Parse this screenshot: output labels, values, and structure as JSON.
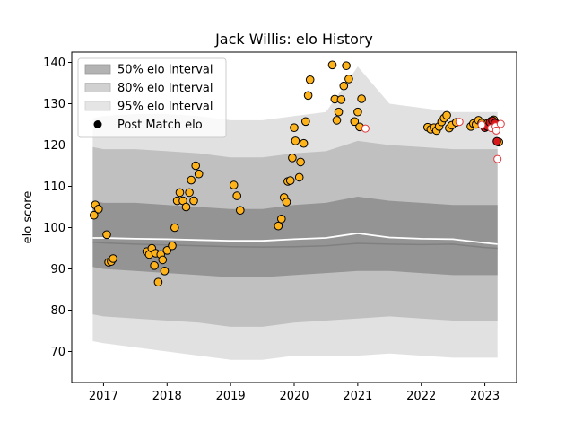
{
  "chart_data": {
    "type": "scatter",
    "title": "Jack Willis: elo History",
    "xlabel": "",
    "ylabel": "elo score",
    "xlim": [
      2016.5,
      2023.5
    ],
    "ylim": [
      62.5,
      142.5
    ],
    "x_ticks": [
      2017,
      2018,
      2019,
      2020,
      2021,
      2022,
      2023
    ],
    "y_ticks": [
      70,
      80,
      90,
      100,
      110,
      120,
      130,
      140
    ],
    "grid": false,
    "legend_position": "top-left",
    "legend": [
      {
        "label": "50% elo Interval",
        "kind": "band",
        "color": "#999999",
        "opacity": 0.75
      },
      {
        "label": "80% elo Interval",
        "kind": "band",
        "color": "#b3b3b3",
        "opacity": 0.6
      },
      {
        "label": "95% elo Interval",
        "kind": "band",
        "color": "#d0d0d0",
        "opacity": 0.55
      },
      {
        "label": "Post Match elo",
        "kind": "marker",
        "color": "#000000"
      }
    ],
    "colors": {
      "band50": "#8c8c8c",
      "band80": "#b8b8b8",
      "band95": "#d9d9d9",
      "median": "#808080",
      "mean": "#ffffff",
      "point_fill": "#ffb31a",
      "point_fill_late": "#d7191c",
      "point_edge": "#000000",
      "point_hollow_edge": "#e0383b"
    },
    "bands": {
      "x": [
        2016.83,
        2017.0,
        2017.5,
        2018.0,
        2018.5,
        2019.0,
        2019.5,
        2020.0,
        2020.5,
        2021.0,
        2021.5,
        2022.0,
        2022.5,
        2023.0,
        2023.2
      ],
      "p95_hi": [
        126.5,
        127,
        127.5,
        127.5,
        127,
        126,
        126,
        127,
        128,
        139,
        130,
        129,
        128,
        128,
        128
      ],
      "p95_lo": [
        72.5,
        72,
        71,
        70,
        69,
        68,
        68,
        69,
        69,
        69,
        69.5,
        69,
        68.5,
        68.5,
        68.5
      ],
      "p80_hi": [
        119.5,
        119,
        119,
        118.5,
        118,
        117,
        117,
        118,
        118.5,
        121,
        120,
        119.5,
        119,
        119,
        119
      ],
      "p80_lo": [
        79,
        78.5,
        78,
        77.5,
        77,
        76,
        76,
        77,
        77.5,
        78,
        78.5,
        78,
        77.5,
        77.5,
        77.5
      ],
      "p50_hi": [
        106.5,
        106,
        106,
        105.5,
        105,
        104.5,
        104.5,
        105.5,
        106,
        107.5,
        106.5,
        106,
        105.5,
        105.5,
        105.5
      ],
      "p50_lo": [
        90.5,
        90,
        89.5,
        89,
        88.5,
        88,
        88,
        88.5,
        89,
        89.5,
        89.5,
        89,
        88.5,
        88.5,
        88.5
      ],
      "median": [
        96.5,
        96.3,
        96,
        95.8,
        95.6,
        95.4,
        95.3,
        95.4,
        95.6,
        96.2,
        96.0,
        95.9,
        96.0,
        95.2,
        95.0
      ],
      "mean": [
        97.5,
        97.5,
        97.3,
        97.2,
        97.0,
        96.8,
        96.8,
        97.2,
        97.5,
        98.6,
        97.6,
        97.3,
        97.2,
        96.3,
        96.0
      ]
    },
    "points": [
      [
        2016.85,
        103
      ],
      [
        2016.87,
        105.5
      ],
      [
        2016.92,
        104.5
      ],
      [
        2017.05,
        98.3
      ],
      [
        2017.08,
        91.6
      ],
      [
        2017.12,
        91.8
      ],
      [
        2017.15,
        92.5
      ],
      [
        2017.68,
        94.2
      ],
      [
        2017.72,
        93.5
      ],
      [
        2017.76,
        95
      ],
      [
        2017.8,
        90.8
      ],
      [
        2017.82,
        93.8
      ],
      [
        2017.86,
        86.8
      ],
      [
        2017.9,
        93.5
      ],
      [
        2017.93,
        92.2
      ],
      [
        2017.96,
        89.5
      ],
      [
        2018.0,
        94.5
      ],
      [
        2018.08,
        95.6
      ],
      [
        2018.12,
        100
      ],
      [
        2018.16,
        106.5
      ],
      [
        2018.2,
        108.5
      ],
      [
        2018.25,
        106.5
      ],
      [
        2018.3,
        105
      ],
      [
        2018.35,
        108.5
      ],
      [
        2018.38,
        111.5
      ],
      [
        2018.42,
        106.5
      ],
      [
        2018.45,
        115
      ],
      [
        2018.5,
        113
      ],
      [
        2019.05,
        110.3
      ],
      [
        2019.1,
        107.7
      ],
      [
        2019.15,
        104.2
      ],
      [
        2019.75,
        100.4
      ],
      [
        2019.8,
        102.1
      ],
      [
        2019.84,
        107.3
      ],
      [
        2019.88,
        106.2
      ],
      [
        2019.9,
        111.2
      ],
      [
        2019.94,
        111.4
      ],
      [
        2019.97,
        116.9
      ],
      [
        2020.0,
        124.2
      ],
      [
        2020.02,
        121
      ],
      [
        2020.08,
        112.2
      ],
      [
        2020.1,
        115.9
      ],
      [
        2020.15,
        120.4
      ],
      [
        2020.18,
        125.7
      ],
      [
        2020.22,
        132
      ],
      [
        2020.25,
        135.8
      ],
      [
        2020.6,
        139.4
      ],
      [
        2020.64,
        131.1
      ],
      [
        2020.67,
        126
      ],
      [
        2020.7,
        128
      ],
      [
        2020.74,
        131
      ],
      [
        2020.78,
        134.3
      ],
      [
        2020.82,
        139.2
      ],
      [
        2020.86,
        136
      ],
      [
        2020.95,
        125.7
      ],
      [
        2021.0,
        128
      ],
      [
        2021.03,
        124.4
      ],
      [
        2021.06,
        131.2
      ],
      [
        2022.1,
        124.3
      ],
      [
        2022.15,
        123.8
      ],
      [
        2022.2,
        124.2
      ],
      [
        2022.24,
        123.5
      ],
      [
        2022.28,
        124.5
      ],
      [
        2022.32,
        125.6
      ],
      [
        2022.36,
        126.5
      ],
      [
        2022.4,
        127.2
      ],
      [
        2022.44,
        124.1
      ],
      [
        2022.48,
        124.8
      ],
      [
        2022.55,
        125.5
      ],
      [
        2022.78,
        124.5
      ],
      [
        2022.82,
        125.2
      ],
      [
        2022.86,
        125
      ],
      [
        2022.9,
        126
      ],
      [
        2022.95,
        125.3
      ],
      [
        2023.0,
        124.6
      ],
      [
        2023.05,
        125.4
      ],
      [
        2023.1,
        125.8
      ],
      [
        2023.14,
        126.1
      ],
      [
        2023.18,
        125.2
      ],
      [
        2023.2,
        120.8
      ],
      [
        2023.22,
        120.7
      ]
    ],
    "late_points": [
      [
        2023.0,
        124.2
      ],
      [
        2023.04,
        124.5
      ],
      [
        2023.08,
        125.5
      ],
      [
        2023.12,
        125.9
      ],
      [
        2023.16,
        125.3
      ],
      [
        2023.19,
        120.9
      ]
    ],
    "hollow_points": [
      [
        2021.12,
        124
      ],
      [
        2022.6,
        125.6
      ],
      [
        2022.95,
        124.9
      ],
      [
        2023.1,
        124.1
      ],
      [
        2023.17,
        124.5
      ],
      [
        2023.25,
        125.1
      ],
      [
        2023.2,
        116.6
      ],
      [
        2023.18,
        123.5
      ]
    ]
  }
}
